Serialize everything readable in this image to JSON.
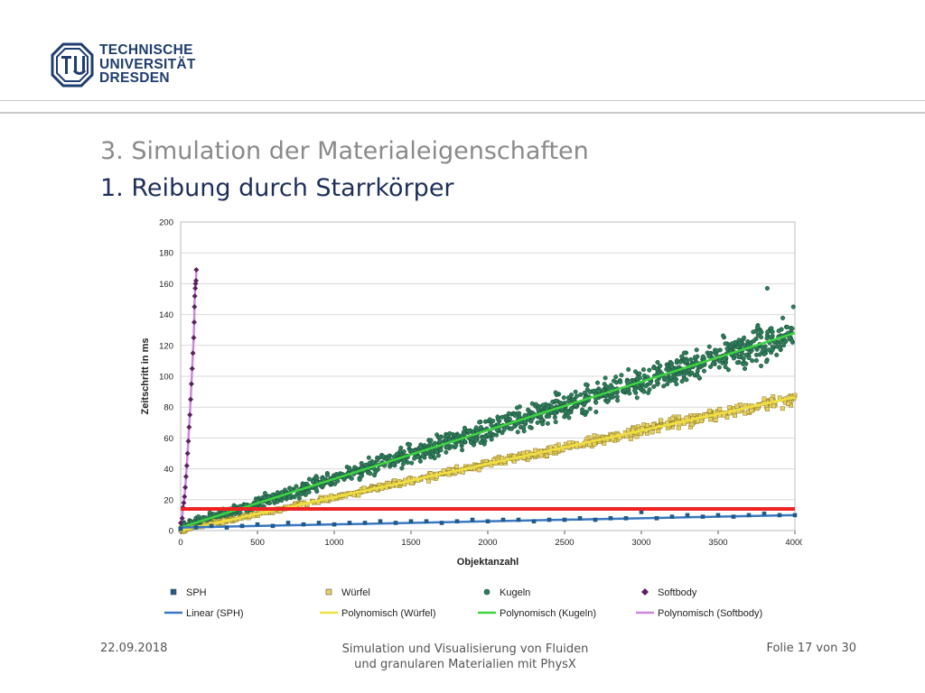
{
  "header": {
    "logo_lines": [
      "TECHNISCHE",
      "UNIVERSITÄT",
      "DRESDEN"
    ],
    "brand_color": "#1f3d6e"
  },
  "slide": {
    "title": "3. Simulation der Materialeigenschaften",
    "subtitle": "1. Reibung durch Starrkörper"
  },
  "footer": {
    "date": "22.09.2018",
    "center_line1": "Simulation und Visualisierung von Fluiden",
    "center_line2": "und granularen Materialien mit PhysX",
    "page": "Folie 17 von 30"
  },
  "chart_data": {
    "type": "scatter",
    "xlabel": "Objektanzahl",
    "ylabel": "Zeitschritt in ms",
    "xlim": [
      0,
      4000
    ],
    "ylim": [
      0,
      200
    ],
    "xticks": [
      0,
      500,
      1000,
      1500,
      2000,
      2500,
      3000,
      3500,
      4000
    ],
    "yticks": [
      0,
      20,
      40,
      60,
      80,
      100,
      120,
      140,
      160,
      180,
      200
    ],
    "grid": true,
    "legend_position": "bottom",
    "series": [
      {
        "name": "SPH",
        "marker": "square",
        "color": "#1f5a8a",
        "x": [
          0,
          100,
          200,
          300,
          400,
          500,
          600,
          700,
          800,
          900,
          1000,
          1100,
          1200,
          1300,
          1400,
          1500,
          1600,
          1700,
          1800,
          1900,
          2000,
          2100,
          2200,
          2300,
          2400,
          2500,
          2600,
          2700,
          2800,
          2900,
          3000,
          3100,
          3200,
          3300,
          3400,
          3500,
          3600,
          3700,
          3800,
          3900,
          4000
        ],
        "y": [
          1,
          2,
          3,
          2,
          3,
          4,
          3,
          5,
          4,
          5,
          4,
          5,
          5,
          6,
          5,
          6,
          6,
          5,
          6,
          7,
          6,
          7,
          7,
          6,
          7,
          7,
          8,
          7,
          8,
          8,
          12,
          8,
          9,
          10,
          9,
          10,
          9,
          10,
          11,
          10,
          10
        ]
      },
      {
        "name": "Würfel",
        "marker": "square",
        "color": "#e8d060",
        "trend_slope": 0.0216
      },
      {
        "name": "Kugeln",
        "marker": "circle",
        "color": "#2e7d5b",
        "trend_slope": 0.0315,
        "trend_intercept": 2
      },
      {
        "name": "Softbody",
        "marker": "diamond",
        "color": "#5a2060",
        "x": [
          0,
          10,
          15,
          20,
          25,
          30,
          35,
          40,
          45,
          50,
          55,
          60,
          65,
          70,
          75,
          80,
          85,
          88,
          90,
          92,
          95,
          97,
          100,
          102
        ],
        "y": [
          5,
          8,
          15,
          18,
          22,
          28,
          35,
          42,
          50,
          58,
          67,
          75,
          85,
          95,
          105,
          115,
          125,
          135,
          145,
          152,
          157,
          160,
          162,
          169
        ]
      }
    ],
    "trendlines": [
      {
        "name": "Linear (SPH)",
        "color": "#3a78c2"
      },
      {
        "name": "Polynomisch (Würfel)",
        "color": "#f0e040"
      },
      {
        "name": "Polynomisch (Kugeln)",
        "color": "#3fd43f"
      },
      {
        "name": "Polynomisch (Softbody)",
        "color": "#cc88dd"
      }
    ],
    "reference_line": {
      "y": 14,
      "color": "#ee2222"
    }
  }
}
